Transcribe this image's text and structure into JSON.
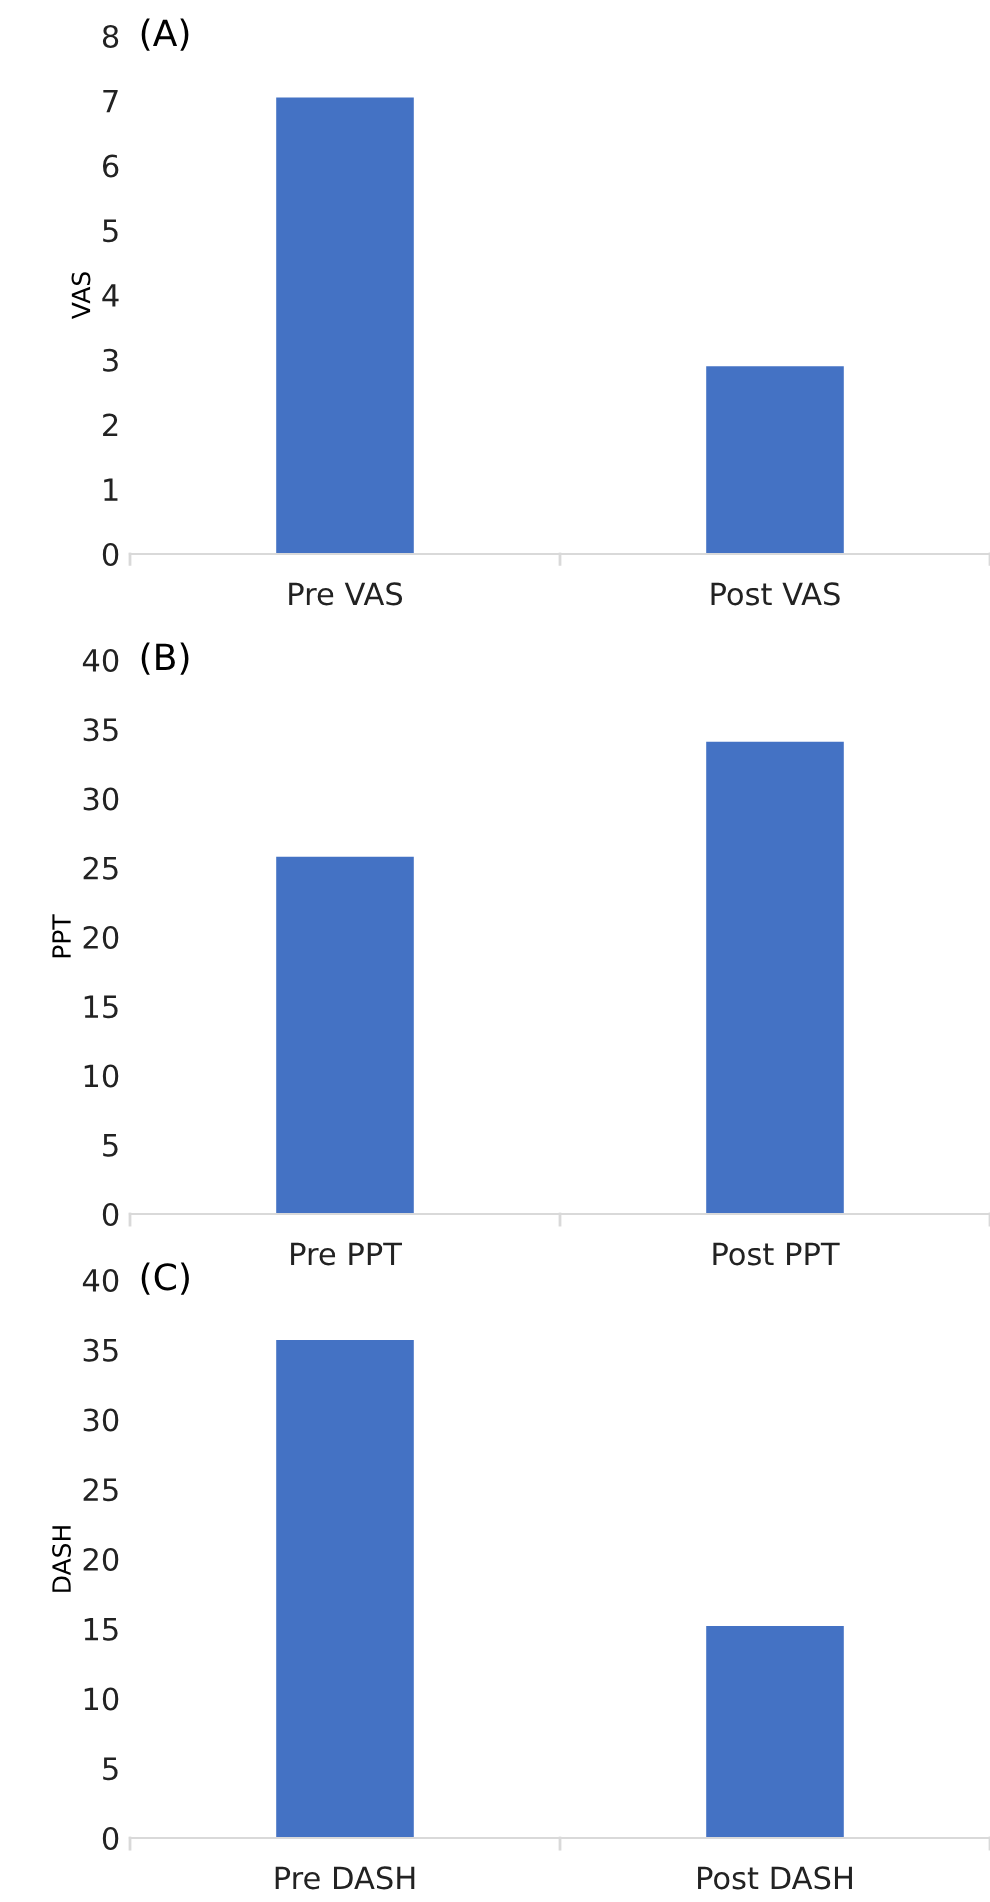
{
  "chart_data": [
    {
      "type": "bar",
      "title": "(A)",
      "ylabel": "VAS",
      "categories": [
        "Pre VAS",
        "Post VAS"
      ],
      "values": [
        7.05,
        2.9
      ],
      "color": "#4472c4",
      "ylim": [
        0,
        8
      ],
      "yticks": [
        0,
        1,
        2,
        3,
        4,
        5,
        6,
        7,
        8
      ],
      "grid": false
    },
    {
      "type": "bar",
      "title": "(B)",
      "ylabel": "PPT",
      "categories": [
        "Pre PPT",
        "Post PPT"
      ],
      "values": [
        25.8,
        34.1
      ],
      "color": "#4472c4",
      "ylim": [
        0,
        40
      ],
      "yticks": [
        0,
        5,
        10,
        15,
        20,
        25,
        30,
        35,
        40
      ],
      "grid": false
    },
    {
      "type": "bar",
      "title": "(C)",
      "ylabel": "DASH",
      "categories": [
        "Pre DASH",
        "Post DASH"
      ],
      "values": [
        35.7,
        15.2
      ],
      "color": "#4472c4",
      "ylim": [
        0,
        40
      ],
      "yticks": [
        0,
        5,
        10,
        15,
        20,
        25,
        30,
        35,
        40
      ],
      "grid": false
    }
  ]
}
